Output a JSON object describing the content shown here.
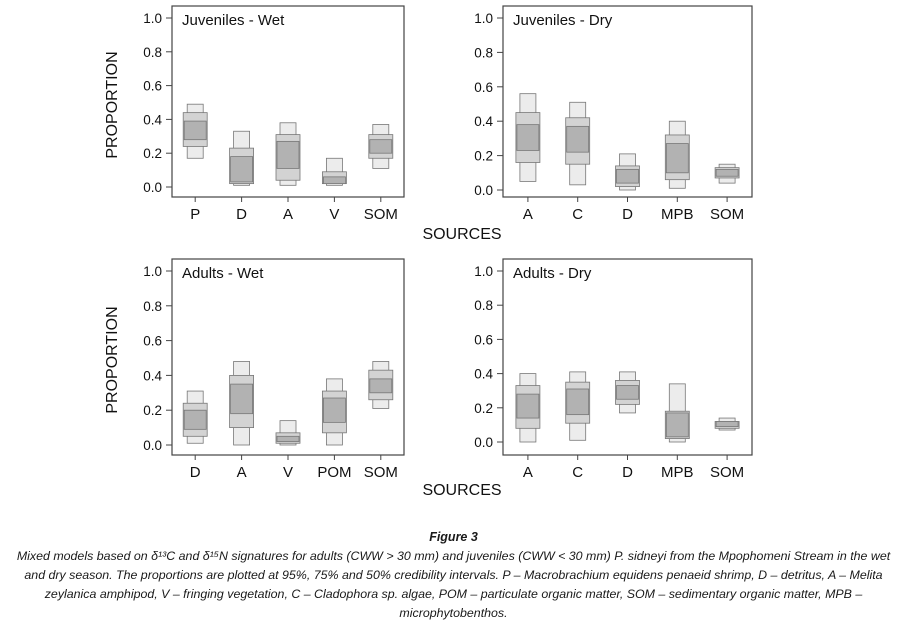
{
  "figure": {
    "title": "Figure 3",
    "caption": "Mixed models based on δ¹³C and δ¹⁵N signatures for adults (CWW > 30 mm) and juveniles (CWW < 30 mm) P. sidneyi from the Mpophomeni Stream in the wet and dry season. The proportions are plotted at 95%, 75% and 50% credibility intervals. P – Macrobrachium equidens penaeid shrimp, D – detritus, A – Melita zeylanica amphipod, V – fringing vegetation, C – Cladophora sp. algae, POM – particulate organic matter, SOM – sedimentary organic matter, MPB – microphytobenthos."
  },
  "colors": {
    "ci95": "#ececec",
    "ci75": "#d3d3d3",
    "ci50": "#b2b2b2",
    "stroke": "#777777",
    "frame": "#444444"
  },
  "chart_data": [
    {
      "type": "boxplot-credibility",
      "title": "Juveniles - Wet",
      "ylabel": "PROPORTION",
      "xlabel": "SOURCES",
      "ylim": [
        0,
        1
      ],
      "yticks": [
        "0.0",
        "0.2",
        "0.4",
        "0.6",
        "0.8",
        "1.0"
      ],
      "categories": [
        "P",
        "D",
        "A",
        "V",
        "SOM"
      ],
      "ci95": [
        [
          0.17,
          0.49
        ],
        [
          0.01,
          0.33
        ],
        [
          0.01,
          0.38
        ],
        [
          0.01,
          0.17
        ],
        [
          0.11,
          0.37
        ]
      ],
      "ci75": [
        [
          0.24,
          0.44
        ],
        [
          0.02,
          0.23
        ],
        [
          0.04,
          0.31
        ],
        [
          0.02,
          0.09
        ],
        [
          0.17,
          0.31
        ]
      ],
      "ci50": [
        [
          0.28,
          0.39
        ],
        [
          0.03,
          0.18
        ],
        [
          0.11,
          0.27
        ],
        [
          0.02,
          0.06
        ],
        [
          0.2,
          0.28
        ]
      ]
    },
    {
      "type": "boxplot-credibility",
      "title": "Juveniles - Dry",
      "ylabel": "",
      "xlabel": "",
      "ylim": [
        0,
        1
      ],
      "yticks": [
        "0.0",
        "0.2",
        "0.4",
        "0.6",
        "0.8",
        "1.0"
      ],
      "categories": [
        "A",
        "C",
        "D",
        "MPB",
        "SOM"
      ],
      "ci95": [
        [
          0.05,
          0.56
        ],
        [
          0.03,
          0.51
        ],
        [
          0.0,
          0.21
        ],
        [
          0.01,
          0.4
        ],
        [
          0.04,
          0.15
        ]
      ],
      "ci75": [
        [
          0.16,
          0.45
        ],
        [
          0.15,
          0.42
        ],
        [
          0.02,
          0.14
        ],
        [
          0.06,
          0.32
        ],
        [
          0.07,
          0.13
        ]
      ],
      "ci50": [
        [
          0.23,
          0.38
        ],
        [
          0.22,
          0.37
        ],
        [
          0.04,
          0.12
        ],
        [
          0.1,
          0.27
        ],
        [
          0.08,
          0.12
        ]
      ]
    },
    {
      "type": "boxplot-credibility",
      "title": "Adults - Wet",
      "ylabel": "PROPORTION",
      "xlabel": "SOURCES",
      "ylim": [
        0,
        1
      ],
      "yticks": [
        "0.0",
        "0.2",
        "0.4",
        "0.6",
        "0.8",
        "1.0"
      ],
      "categories": [
        "D",
        "A",
        "V",
        "POM",
        "SOM"
      ],
      "ci95": [
        [
          0.01,
          0.31
        ],
        [
          0.0,
          0.48
        ],
        [
          0.0,
          0.14
        ],
        [
          0.0,
          0.38
        ],
        [
          0.21,
          0.48
        ]
      ],
      "ci75": [
        [
          0.05,
          0.24
        ],
        [
          0.1,
          0.4
        ],
        [
          0.01,
          0.07
        ],
        [
          0.07,
          0.31
        ],
        [
          0.26,
          0.43
        ]
      ],
      "ci50": [
        [
          0.09,
          0.2
        ],
        [
          0.18,
          0.35
        ],
        [
          0.02,
          0.05
        ],
        [
          0.13,
          0.27
        ],
        [
          0.3,
          0.38
        ]
      ]
    },
    {
      "type": "boxplot-credibility",
      "title": "Adults - Dry",
      "ylabel": "",
      "xlabel": "",
      "ylim": [
        0,
        1
      ],
      "yticks": [
        "0.0",
        "0.2",
        "0.4",
        "0.6",
        "0.8",
        "1.0"
      ],
      "categories": [
        "A",
        "C",
        "D",
        "MPB",
        "SOM"
      ],
      "ci95": [
        [
          0.0,
          0.4
        ],
        [
          0.01,
          0.41
        ],
        [
          0.17,
          0.41
        ],
        [
          0.0,
          0.34
        ],
        [
          0.07,
          0.14
        ]
      ],
      "ci75": [
        [
          0.08,
          0.33
        ],
        [
          0.11,
          0.35
        ],
        [
          0.22,
          0.36
        ],
        [
          0.02,
          0.18
        ],
        [
          0.08,
          0.12
        ]
      ],
      "ci50": [
        [
          0.14,
          0.28
        ],
        [
          0.16,
          0.31
        ],
        [
          0.25,
          0.33
        ],
        [
          0.03,
          0.17
        ],
        [
          0.09,
          0.12
        ]
      ]
    }
  ]
}
